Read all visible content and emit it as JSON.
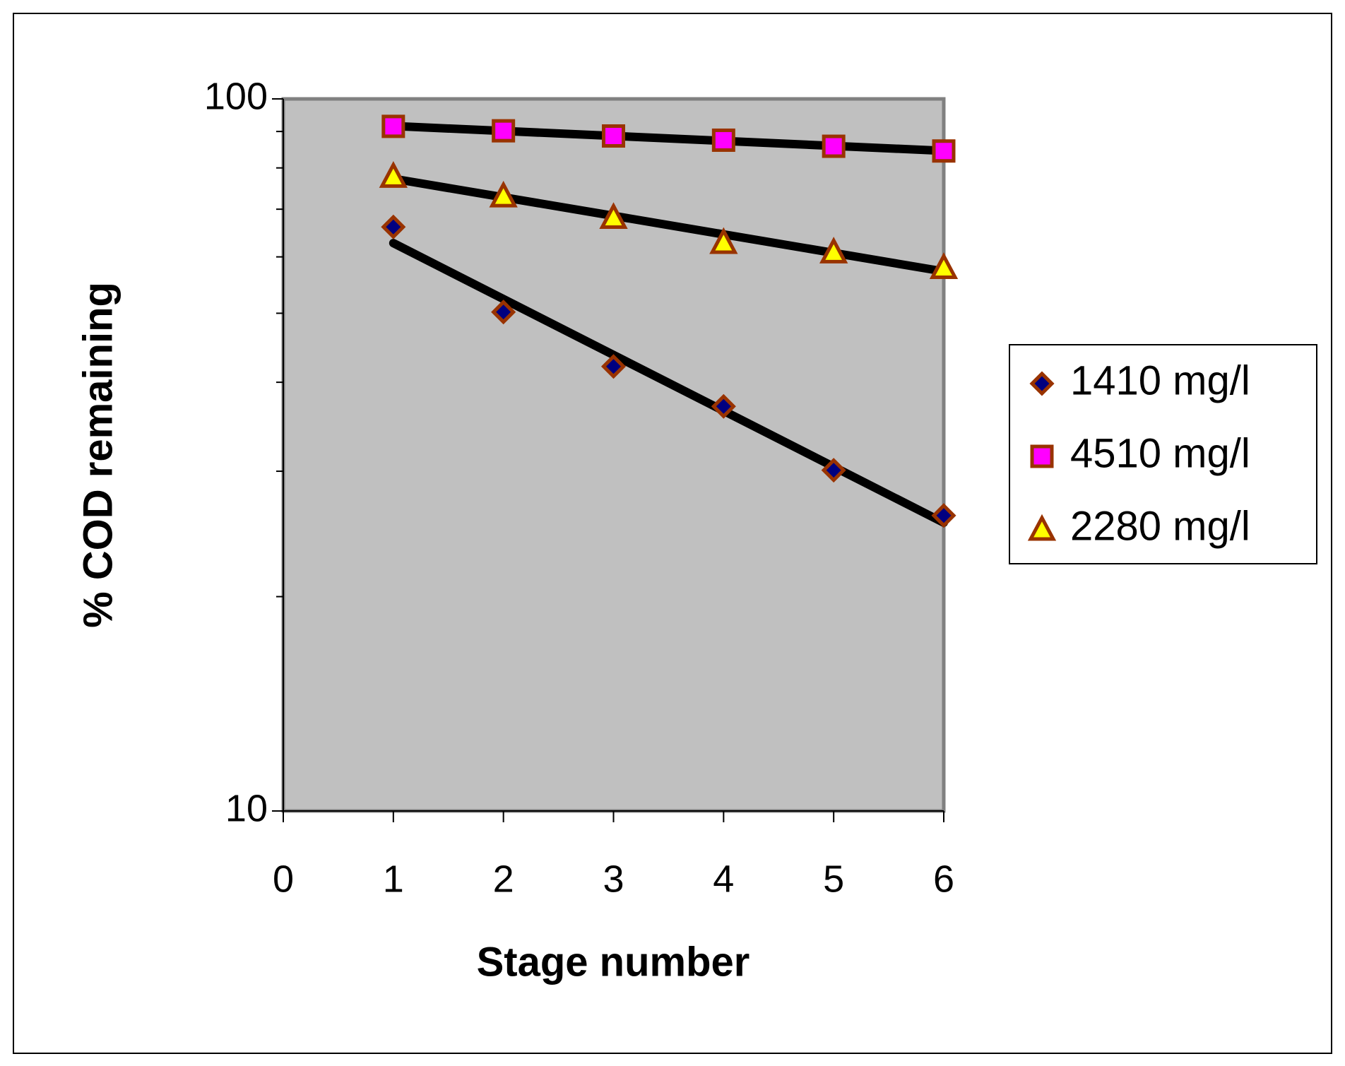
{
  "chart_data": {
    "type": "scatter",
    "x_label": "Stage number",
    "y_label": "% COD remaining",
    "x": [
      1,
      2,
      3,
      4,
      5,
      6
    ],
    "series": [
      {
        "name": "1410 mg/l",
        "marker": "diamond",
        "color": "#000080",
        "edge_color": "#993300",
        "values": [
          66.1,
          50.2,
          42.1,
          37.0,
          30.1,
          26.0
        ]
      },
      {
        "name": "4510 mg/l",
        "marker": "square",
        "color": "#ff00ff",
        "edge_color": "#993300",
        "values": [
          91.5,
          90.2,
          88.7,
          87.5,
          85.8,
          84.5
        ]
      },
      {
        "name": "2280 mg/l",
        "marker": "triangle",
        "color": "#ffff00",
        "edge_color": "#993300",
        "values": [
          77.9,
          73.1,
          68.2,
          62.9,
          61.0,
          58.0
        ]
      }
    ],
    "trendline": "exponential",
    "trendline_color": "#000000",
    "xlim": [
      0,
      6
    ],
    "xticks": [
      0,
      1,
      2,
      3,
      4,
      5,
      6
    ],
    "ylim": [
      10,
      100
    ],
    "yticks": [
      10,
      100
    ],
    "yminorticks": [
      20,
      30,
      40,
      50,
      60,
      70,
      80,
      90
    ],
    "yscale": "log",
    "plot_background": "#c0c0c0",
    "legend": "right"
  }
}
